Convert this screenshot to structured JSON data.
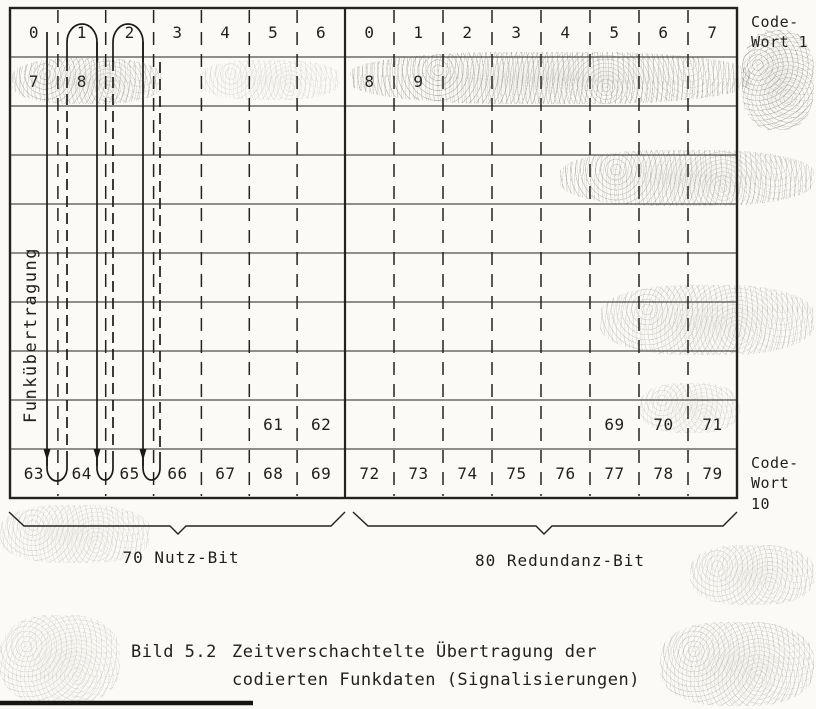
{
  "figure": {
    "caption_prefix": "Bild 5.2",
    "caption_line1": "Zeitverschachtelte Übertragung der",
    "caption_line2": "codierten Funkdaten (Signalisierungen)"
  },
  "labels": {
    "funkuebertragung": "Funkübertragung",
    "code_wort_top": "Code-\nWort 1",
    "code_wort_bottom": "Code-\nWort 10",
    "brace_left": "70 Nutz-Bit",
    "brace_right": "80 Redundanz-Bit"
  },
  "table": {
    "left_section": {
      "name": "Nutz-Bit",
      "columns": 7,
      "rows": [
        [
          "0",
          "1",
          "2",
          "3",
          "4",
          "5",
          "6"
        ],
        [
          "7",
          "8",
          "",
          "",
          "",
          "",
          ""
        ],
        [
          "",
          "",
          "",
          "",
          "",
          "",
          ""
        ],
        [
          "",
          "",
          "",
          "",
          "",
          "",
          ""
        ],
        [
          "",
          "",
          "",
          "",
          "",
          "",
          ""
        ],
        [
          "",
          "",
          "",
          "",
          "",
          "",
          ""
        ],
        [
          "",
          "",
          "",
          "",
          "",
          "",
          ""
        ],
        [
          "",
          "",
          "",
          "",
          "",
          "",
          ""
        ],
        [
          "",
          "",
          "",
          "",
          "",
          "61",
          "62"
        ],
        [
          "63",
          "64",
          "65",
          "66",
          "67",
          "68",
          "69"
        ]
      ]
    },
    "right_section": {
      "name": "Redundanz-Bit",
      "columns": 8,
      "rows": [
        [
          "0",
          "1",
          "2",
          "3",
          "4",
          "5",
          "6",
          "7"
        ],
        [
          "8",
          "9",
          "",
          "",
          "",
          "",
          "",
          ""
        ],
        [
          "",
          "",
          "",
          "",
          "",
          "",
          "",
          ""
        ],
        [
          "",
          "",
          "",
          "",
          "",
          "",
          "",
          ""
        ],
        [
          "",
          "",
          "",
          "",
          "",
          "",
          "",
          ""
        ],
        [
          "",
          "",
          "",
          "",
          "",
          "",
          "",
          ""
        ],
        [
          "",
          "",
          "",
          "",
          "",
          "",
          "",
          ""
        ],
        [
          "",
          "",
          "",
          "",
          "",
          "",
          "",
          ""
        ],
        [
          "",
          "",
          "",
          "",
          "",
          "69",
          "70",
          "71"
        ],
        [
          "72",
          "73",
          "74",
          "75",
          "76",
          "77",
          "78",
          "79"
        ]
      ]
    }
  },
  "colors": {
    "ink": "#201f1c",
    "paper": "#fbfaf6"
  }
}
